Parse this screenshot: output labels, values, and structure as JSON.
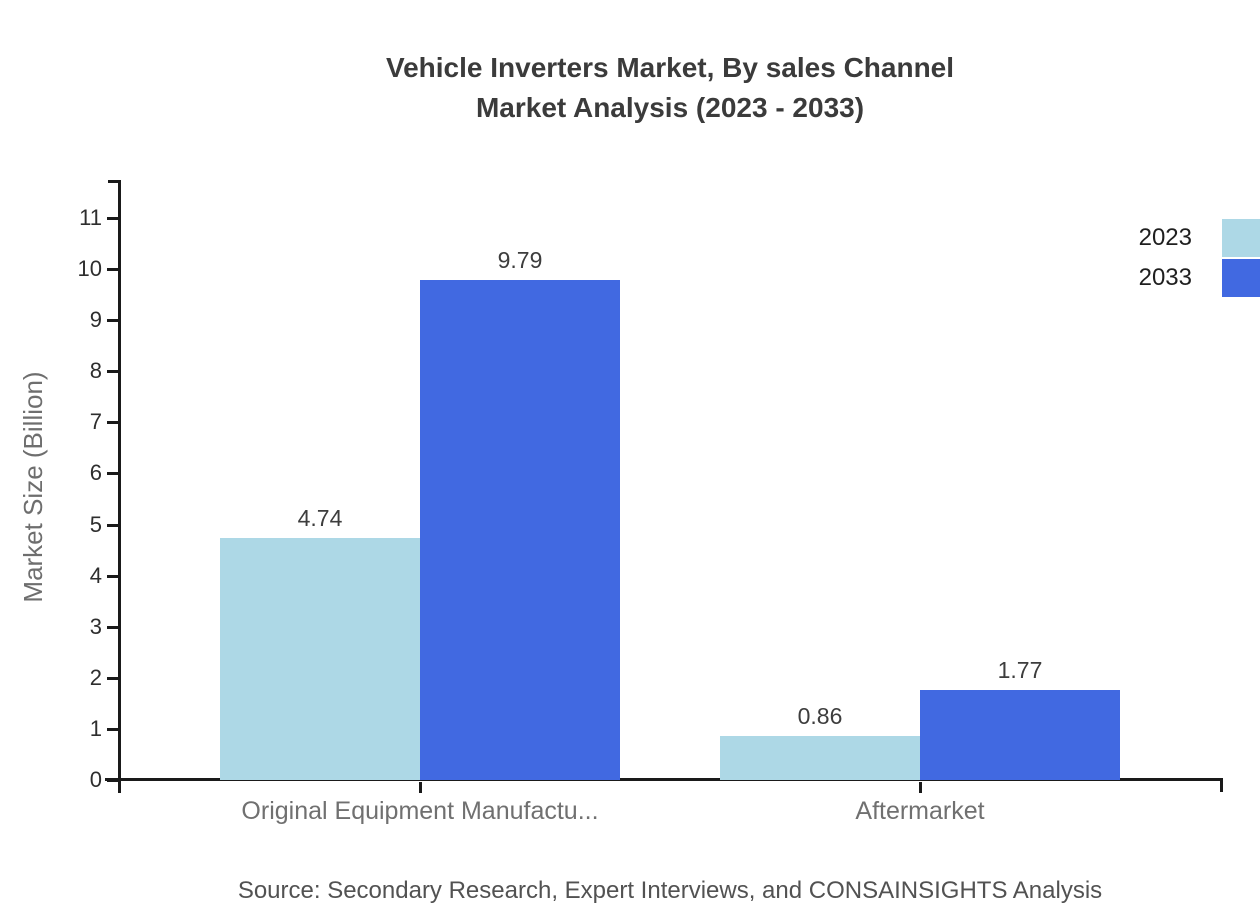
{
  "title": {
    "line1": "Vehicle Inverters Market, By sales Channel",
    "line2": "Market Analysis (2023 - 2033)"
  },
  "source": "Source: Secondary Research, Expert Interviews, and CONSAINSIGHTS Analysis",
  "legend": {
    "position": "top-right",
    "items": [
      {
        "label": "2023",
        "color": "#ADD8E6"
      },
      {
        "label": "2033",
        "color": "#4169E1"
      }
    ]
  },
  "colors": {
    "series_2023": "#ADD8E6",
    "series_2033": "#4169E1",
    "axis": "#1a1a1a",
    "title_text": "#3b3b3b",
    "muted_text": "#707070"
  },
  "chart_data": {
    "type": "bar",
    "categories": [
      "Original Equipment Manufactu...",
      "Aftermarket"
    ],
    "series": [
      {
        "name": "2023",
        "color": "#ADD8E6",
        "values": [
          4.74,
          0.86
        ]
      },
      {
        "name": "2033",
        "color": "#4169E1",
        "values": [
          9.79,
          1.77
        ]
      }
    ],
    "value_labels": [
      [
        "4.74",
        "0.86"
      ],
      [
        "9.79",
        "1.77"
      ]
    ],
    "title": "Vehicle Inverters Market, By sales Channel Market Analysis (2023 - 2033)",
    "xlabel": "",
    "ylabel": "Market Size (Billion)",
    "yticks": [
      0,
      1,
      2,
      3,
      4,
      5,
      6,
      7,
      8,
      9,
      10,
      11
    ],
    "ylim": [
      0,
      11.7
    ],
    "grid": false,
    "legend_position": "top-right"
  }
}
